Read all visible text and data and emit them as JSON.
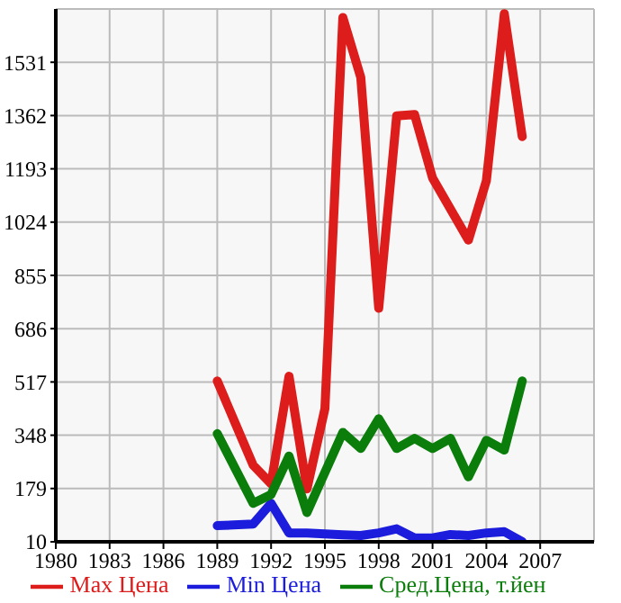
{
  "chart_data": {
    "type": "line",
    "series": [
      {
        "name": "Max Цена",
        "color": "#dd1c1c",
        "x": [
          1989,
          1991,
          1992,
          1993,
          1994,
          1995,
          1996,
          1997,
          1998,
          1999,
          2000,
          2001,
          2003,
          2004,
          2005,
          2006
        ],
        "values": [
          520,
          253,
          194,
          535,
          178,
          432,
          1673,
          1483,
          751,
          1361,
          1365,
          1164,
          967,
          1155,
          1685,
          1295
        ]
      },
      {
        "name": "Min Цена",
        "color": "#1c1cdd",
        "x": [
          1989,
          1991,
          1992,
          1993,
          1994,
          1996,
          1997,
          1998,
          1999,
          2000,
          2001,
          2002,
          2003,
          2004,
          2005,
          2006
        ],
        "values": [
          61,
          66,
          132,
          38,
          38,
          32,
          30,
          38,
          51,
          22,
          22,
          33,
          30,
          38,
          42,
          10
        ]
      },
      {
        "name": "Сред.Цена, т.йен",
        "color": "#0a7d0a",
        "x": [
          1989,
          1991,
          1992,
          1993,
          1994,
          1996,
          1997,
          1998,
          1999,
          2000,
          2001,
          2002,
          2003,
          2004,
          2005,
          2006
        ],
        "values": [
          353,
          132,
          160,
          282,
          103,
          357,
          306,
          400,
          306,
          338,
          306,
          338,
          216,
          332,
          301,
          520
        ]
      }
    ],
    "xlim": [
      1980,
      2010
    ],
    "xticks": [
      1980,
      1983,
      1986,
      1989,
      1992,
      1995,
      1998,
      2001,
      2004,
      2007
    ],
    "ylim": [
      10,
      1700
    ],
    "yticks": [
      10,
      179,
      348,
      517,
      686,
      855,
      1024,
      1193,
      1362,
      1531
    ],
    "grid": true,
    "legend": "bottom",
    "marker": "none",
    "line_style": "solid"
  }
}
